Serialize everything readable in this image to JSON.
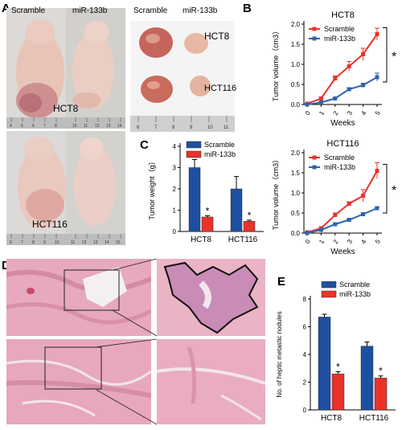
{
  "panel_letters": {
    "a": "A",
    "b": "B",
    "c": "C",
    "d": "D",
    "e": "E"
  },
  "panel_a": {
    "mice_labels": {
      "scramble": "Scramble",
      "mir": "miR-133b"
    },
    "mouse_tag_top": "HCT8",
    "mouse_tag_bottom": "HCT116",
    "tumor_labels": {
      "scramble": "Scramble",
      "mir": "miR-133b"
    },
    "tumor_tag_top": "HCT8",
    "tumor_tag_bottom": "HCT116",
    "ruler_mice_top": [
      "4",
      "5",
      "6",
      "7",
      "8",
      "10",
      "11",
      "12",
      "13",
      "14"
    ],
    "ruler_mice_bottom": [
      "6",
      "7",
      "8",
      "9",
      "10",
      "11",
      "12",
      "13",
      "14",
      "15"
    ],
    "ruler_tumor": [
      "6",
      "7",
      "8",
      "9",
      "10",
      "11"
    ]
  },
  "colors": {
    "scramble_line": "#e8332a",
    "mir_line": "#2f64ad",
    "scramble_bar": "#1f4fa0",
    "mir_bar": "#e8332a"
  },
  "chart_data": [
    {
      "id": "B_HCT8",
      "type": "line",
      "title": "HCT8",
      "xlabel": "Weeks",
      "ylabel": "Tumor volume（cm3）",
      "x": [
        0,
        1,
        2,
        3,
        4,
        5
      ],
      "ylim": [
        0,
        2
      ],
      "yticks": [
        0,
        0.5,
        1,
        1.5,
        2
      ],
      "ytick_labels": [
        "0.0",
        "0.5",
        "1.0",
        "1.5",
        "2.0"
      ],
      "series": [
        {
          "name": "Scramble",
          "values": [
            0.02,
            0.15,
            0.65,
            0.95,
            1.25,
            1.75
          ],
          "err": [
            0.01,
            0.03,
            0.06,
            0.12,
            0.15,
            0.15
          ]
        },
        {
          "name": "miR-133b",
          "values": [
            0.0,
            0.05,
            0.15,
            0.38,
            0.48,
            0.68
          ],
          "err": [
            0.01,
            0.02,
            0.03,
            0.04,
            0.05,
            0.1
          ]
        }
      ],
      "annotation": "*"
    },
    {
      "id": "B_HCT116",
      "type": "line",
      "title": "HCT116",
      "xlabel": "Weeks",
      "ylabel": "Tumor volume（cm3）",
      "x": [
        0,
        1,
        2,
        3,
        4,
        5
      ],
      "ylim": [
        0,
        2
      ],
      "yticks": [
        0,
        0.5,
        1,
        1.5,
        2
      ],
      "ytick_labels": [
        "0.0",
        "0.5",
        "1.0",
        "1.5",
        "2.0"
      ],
      "series": [
        {
          "name": "Scramble",
          "values": [
            0.02,
            0.12,
            0.45,
            0.73,
            0.93,
            1.55
          ],
          "err": [
            0.01,
            0.03,
            0.05,
            0.05,
            0.15,
            0.2
          ]
        },
        {
          "name": "miR-133b",
          "values": [
            0.0,
            0.08,
            0.22,
            0.33,
            0.47,
            0.62
          ],
          "err": [
            0.01,
            0.02,
            0.02,
            0.02,
            0.03,
            0.03
          ]
        }
      ],
      "annotation": "*"
    },
    {
      "id": "C",
      "type": "bar",
      "title": "",
      "xlabel": "",
      "ylabel": "Tumor weight（g）",
      "categories": [
        "HCT8",
        "HCT116"
      ],
      "ylim": [
        0,
        4
      ],
      "yticks": [
        0,
        1,
        2,
        3,
        4
      ],
      "series": [
        {
          "name": "Scramble",
          "values": [
            3.0,
            2.0
          ],
          "err": [
            0.38,
            0.58
          ]
        },
        {
          "name": "miR-133b",
          "values": [
            0.68,
            0.48
          ],
          "err": [
            0.06,
            0.05
          ]
        }
      ],
      "annotations": [
        "*",
        "*"
      ]
    },
    {
      "id": "E",
      "type": "bar",
      "title": "",
      "xlabel": "",
      "ylabel": "No. of heptic metastic nodules",
      "categories": [
        "HCT8",
        "HCT116"
      ],
      "ylim": [
        0,
        8
      ],
      "yticks": [
        0,
        2,
        4,
        6,
        8
      ],
      "series": [
        {
          "name": "Scramble",
          "values": [
            6.7,
            4.6
          ],
          "err": [
            0.2,
            0.3
          ]
        },
        {
          "name": "miR-133b",
          "values": [
            2.6,
            2.3
          ],
          "err": [
            0.15,
            0.15
          ]
        }
      ],
      "annotations": [
        "*",
        "*"
      ]
    }
  ]
}
